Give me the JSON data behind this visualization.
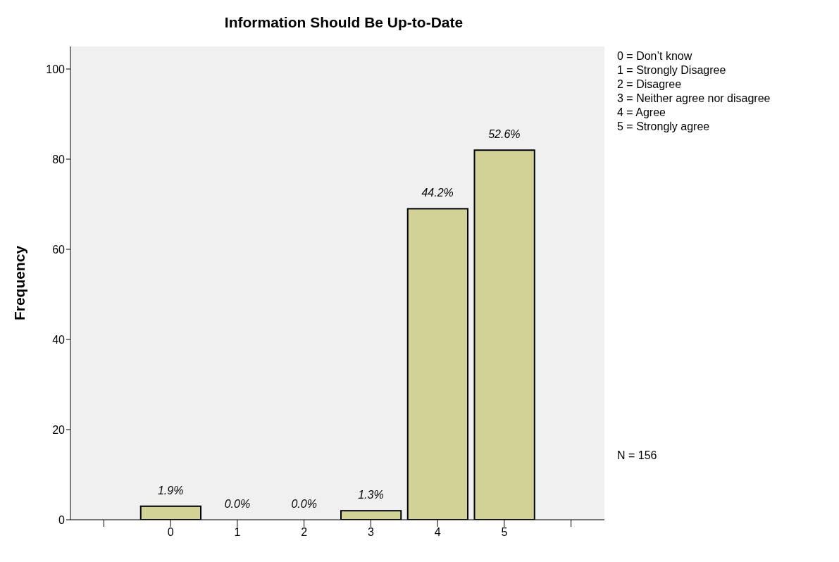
{
  "chart_data": {
    "type": "bar",
    "title": "Information Should Be Up-to-Date",
    "ylabel": "Frequency",
    "categories": [
      null,
      "0",
      "1",
      "2",
      "3",
      "4",
      "5",
      null
    ],
    "values": [
      null,
      3,
      0,
      0,
      2,
      69,
      82,
      null
    ],
    "color": "#d2d296",
    "ylim": [
      0,
      105
    ],
    "yticks": [
      0,
      20,
      40,
      60,
      80,
      100
    ],
    "grid": false,
    "legend": false,
    "annotations": [
      "0 = Don’t know",
      "1 = Strongly Disagree",
      "2 = Disagree",
      "3 = Neither agree nor disagree",
      "4 = Agree",
      "5 = Strongly agree",
      "N = 156",
      {
        "text": "1.9%",
        "x": "0",
        "y": 3
      },
      {
        "text": "0.0%",
        "x": "1",
        "y": 0
      },
      {
        "text": "0.0%",
        "x": "2",
        "y": 0
      },
      {
        "text": "1.3%",
        "x": "3",
        "y": 2
      },
      {
        "text": "44.2%",
        "x": "4",
        "y": 69
      },
      {
        "text": "52.6%",
        "x": "5",
        "y": 82
      }
    ]
  }
}
